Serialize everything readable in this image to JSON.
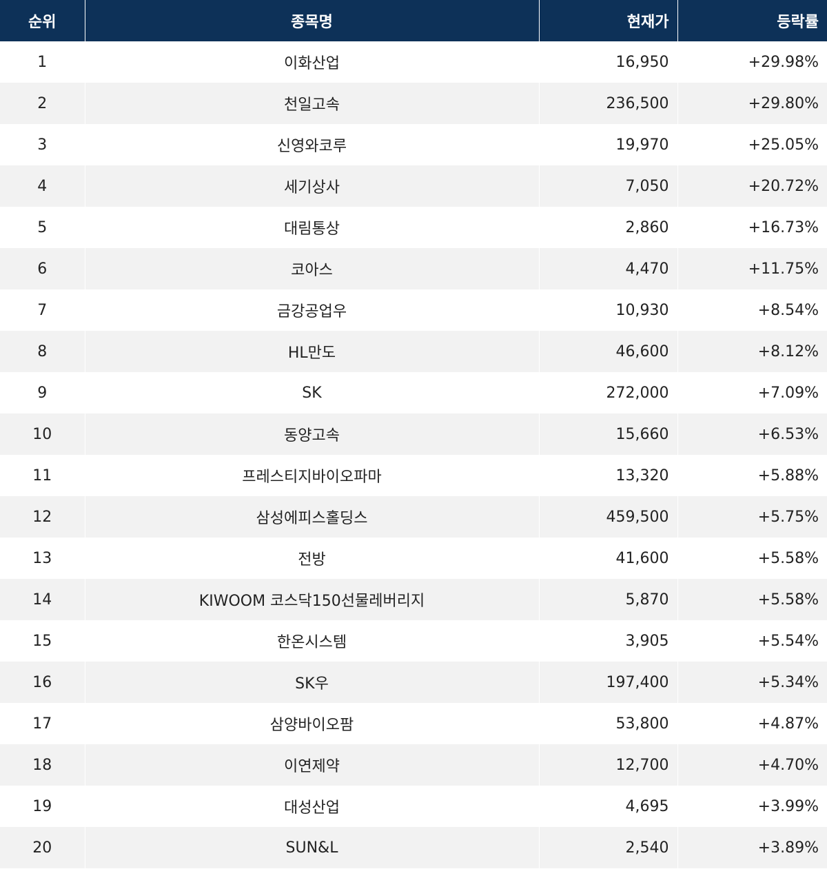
{
  "table": {
    "headers": [
      "순위",
      "종목명",
      "현재가",
      "등락률"
    ],
    "rows": [
      [
        "1",
        "이화산업",
        "16,950",
        "+29.98%"
      ],
      [
        "2",
        "천일고속",
        "236,500",
        "+29.80%"
      ],
      [
        "3",
        "신영와코루",
        "19,970",
        "+25.05%"
      ],
      [
        "4",
        "세기상사",
        "7,050",
        "+20.72%"
      ],
      [
        "5",
        "대림통상",
        "2,860",
        "+16.73%"
      ],
      [
        "6",
        "코아스",
        "4,470",
        "+11.75%"
      ],
      [
        "7",
        "금강공업우",
        "10,930",
        "+8.54%"
      ],
      [
        "8",
        "HL만도",
        "46,600",
        "+8.12%"
      ],
      [
        "9",
        "SK",
        "272,000",
        "+7.09%"
      ],
      [
        "10",
        "동양고속",
        "15,660",
        "+6.53%"
      ],
      [
        "11",
        "프레스티지바이오파마",
        "13,320",
        "+5.88%"
      ],
      [
        "12",
        "삼성에피스홀딩스",
        "459,500",
        "+5.75%"
      ],
      [
        "13",
        "전방",
        "41,600",
        "+5.58%"
      ],
      [
        "14",
        "KIWOOM 코스닥150선물레버리지",
        "5,870",
        "+5.58%"
      ],
      [
        "15",
        "한온시스템",
        "3,905",
        "+5.54%"
      ],
      [
        "16",
        "SK우",
        "197,400",
        "+5.34%"
      ],
      [
        "17",
        "삼양바이오팜",
        "53,800",
        "+4.87%"
      ],
      [
        "18",
        "이연제약",
        "12,700",
        "+4.70%"
      ],
      [
        "19",
        "대성산업",
        "4,695",
        "+3.99%"
      ],
      [
        "20",
        "SUN&L",
        "2,540",
        "+3.89%"
      ]
    ]
  }
}
